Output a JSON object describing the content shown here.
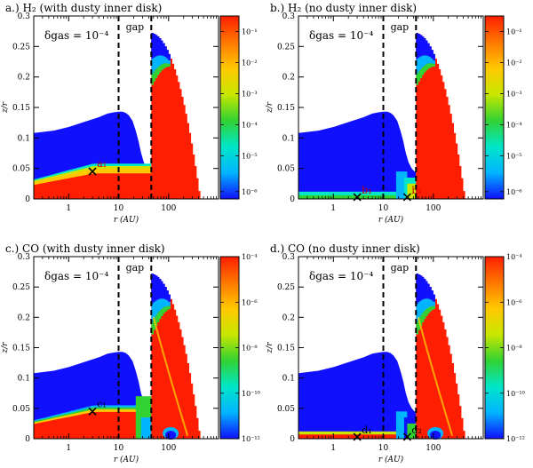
{
  "figure_title": "",
  "colorbars": {
    "h2": {
      "ticks": [
        "10⁻¹",
        "10⁻²",
        "10⁻³",
        "10⁻⁴",
        "10⁻⁵",
        "10⁻⁶"
      ]
    },
    "co": {
      "ticks": [
        "10⁻⁴",
        "10⁻⁶",
        "10⁻⁸",
        "10⁻¹⁰",
        "10⁻¹²"
      ]
    },
    "colormap": [
      "#1010ff",
      "#00b4ff",
      "#00e6c8",
      "#32d232",
      "#c8e600",
      "#ffc800",
      "#ff7800",
      "#ff1e00"
    ]
  },
  "chart_data": [
    {
      "type": "heatmap",
      "title": "a.) H₂ (with dusty inner disk)",
      "xlabel": "r (AU)",
      "ylabel": "z/r",
      "xscale": "log",
      "xlim": [
        0.2,
        1000
      ],
      "ylim": [
        0,
        0.3
      ],
      "x_ticks": [
        "1",
        "10",
        "100"
      ],
      "y_ticks": [
        "0",
        "0.05",
        "0.1",
        "0.15",
        "0.2",
        "0.25",
        "0.3"
      ],
      "annotation": "δgas = 10⁻⁴",
      "gap_label": "gap",
      "gap_r_AU": [
        10,
        45
      ],
      "markers": [
        {
          "label": "a₁",
          "r": 3,
          "zr": 0.045
        }
      ],
      "colorbar": "h2"
    },
    {
      "type": "heatmap",
      "title": "b.) H₂ (no dusty inner disk)",
      "xlabel": "r (AU)",
      "ylabel": "z/r",
      "xscale": "log",
      "xlim": [
        0.2,
        1000
      ],
      "ylim": [
        0,
        0.3
      ],
      "x_ticks": [
        "1",
        "10",
        "100"
      ],
      "y_ticks": [
        "0",
        "0.05",
        "0.1",
        "0.15",
        "0.2",
        "0.25",
        "0.3"
      ],
      "annotation": "δgas = 10⁻⁴",
      "gap_label": "gap",
      "gap_r_AU": [
        10,
        45
      ],
      "markers": [
        {
          "label": "b₁",
          "r": 3,
          "zr": 0.003
        },
        {
          "label": "b₂",
          "r": 30,
          "zr": 0.003
        }
      ],
      "colorbar": "h2"
    },
    {
      "type": "heatmap",
      "title": "c.) CO (with dusty inner disk)",
      "xlabel": "r (AU)",
      "ylabel": "z/r",
      "xscale": "log",
      "xlim": [
        0.2,
        1000
      ],
      "ylim": [
        0,
        0.3
      ],
      "x_ticks": [
        "1",
        "10",
        "100"
      ],
      "y_ticks": [
        "0",
        "0.05",
        "0.1",
        "0.15",
        "0.2",
        "0.25",
        "0.3"
      ],
      "annotation": "δgas = 10⁻⁴",
      "gap_label": "gap",
      "gap_r_AU": [
        10,
        45
      ],
      "markers": [
        {
          "label": "c₁",
          "r": 3,
          "zr": 0.045
        }
      ],
      "colorbar": "co"
    },
    {
      "type": "heatmap",
      "title": "d.) CO (no dusty inner disk)",
      "xlabel": "r (AU)",
      "ylabel": "z/r",
      "xscale": "log",
      "xlim": [
        0.2,
        1000
      ],
      "ylim": [
        0,
        0.3
      ],
      "x_ticks": [
        "1",
        "10",
        "100"
      ],
      "y_ticks": [
        "0",
        "0.05",
        "0.1",
        "0.15",
        "0.2",
        "0.25",
        "0.3"
      ],
      "annotation": "δgas = 10⁻⁴",
      "gap_label": "gap",
      "gap_r_AU": [
        10,
        45
      ],
      "markers": [
        {
          "label": "d₁",
          "r": 3,
          "zr": 0.003
        },
        {
          "label": "d₂",
          "r": 30,
          "zr": 0.003
        }
      ],
      "colorbar": "co"
    }
  ]
}
